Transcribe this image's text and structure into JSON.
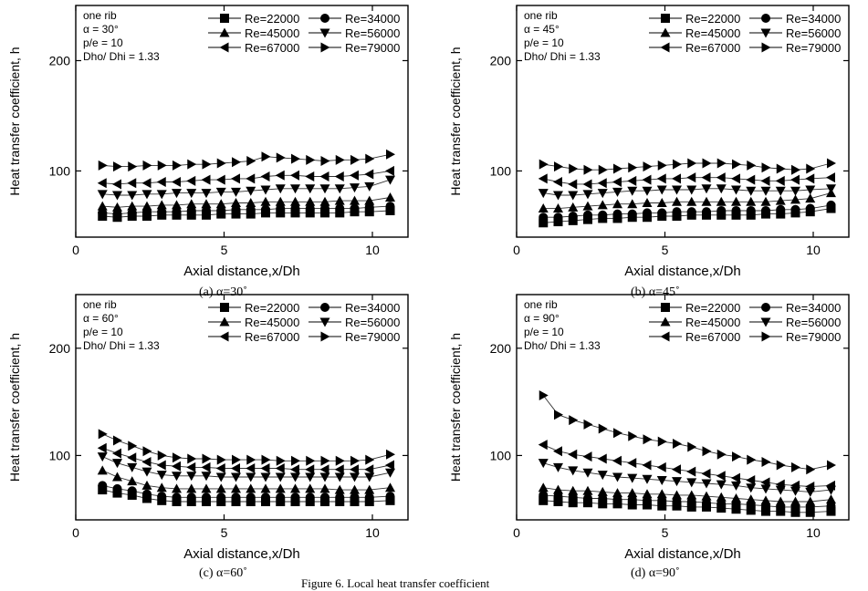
{
  "figure_caption": "Figure 6. Local heat transfer coefficient",
  "chart_data": [
    {
      "type": "scatter",
      "caption": "(a) α=30˚",
      "xlabel": "Axial distance,x/Dh",
      "ylabel": "Heat transfer coefficient, h",
      "xlim": [
        0,
        11.2
      ],
      "ylim": [
        40,
        250
      ],
      "xticks": [
        0,
        5,
        10
      ],
      "yticks": [
        100,
        200
      ],
      "annotation": [
        "one rib",
        "α = 30°",
        "p/e = 10",
        "Dho/ Dhi = 1.33"
      ],
      "x": [
        0.9,
        1.4,
        1.9,
        2.4,
        2.9,
        3.4,
        3.9,
        4.4,
        4.9,
        5.4,
        5.9,
        6.4,
        6.9,
        7.4,
        7.9,
        8.4,
        8.9,
        9.4,
        9.9,
        10.6
      ],
      "series": [
        {
          "name": "Re=22000",
          "marker": "square",
          "values": [
            59,
            58,
            59,
            59,
            60,
            60,
            60,
            60,
            61,
            61,
            61,
            62,
            62,
            62,
            62,
            62,
            62,
            63,
            63,
            64
          ]
        },
        {
          "name": "Re=34000",
          "marker": "circle",
          "values": [
            62,
            61,
            62,
            63,
            63,
            63,
            64,
            64,
            64,
            65,
            65,
            65,
            66,
            66,
            66,
            66,
            66,
            66,
            67,
            68
          ]
        },
        {
          "name": "Re=45000",
          "marker": "triangle-up",
          "values": [
            68,
            67,
            68,
            68,
            69,
            69,
            70,
            70,
            70,
            71,
            71,
            72,
            72,
            72,
            72,
            72,
            73,
            73,
            73,
            76
          ]
        },
        {
          "name": "Re=56000",
          "marker": "triangle-down",
          "values": [
            79,
            78,
            78,
            79,
            79,
            80,
            80,
            80,
            81,
            81,
            82,
            83,
            84,
            84,
            84,
            84,
            84,
            85,
            86,
            92
          ]
        },
        {
          "name": "Re=67000",
          "marker": "triangle-left",
          "values": [
            89,
            88,
            89,
            89,
            90,
            90,
            91,
            92,
            92,
            93,
            93,
            95,
            96,
            96,
            95,
            95,
            95,
            96,
            97,
            100
          ]
        },
        {
          "name": "Re=79000",
          "marker": "triangle-right",
          "values": [
            105,
            104,
            104,
            105,
            105,
            105,
            106,
            106,
            107,
            108,
            109,
            113,
            112,
            111,
            110,
            109,
            110,
            110,
            111,
            115
          ]
        }
      ]
    },
    {
      "type": "scatter",
      "caption": "(b) α=45˚",
      "xlabel": "Axial distance,x/Dh",
      "ylabel": "Heat transfer coefficient, h",
      "xlim": [
        0,
        11.2
      ],
      "ylim": [
        40,
        250
      ],
      "xticks": [
        0,
        5,
        10
      ],
      "yticks": [
        100,
        200
      ],
      "annotation": [
        "one rib",
        "α = 45°",
        "p/e = 10",
        "Dho/ Dhi = 1.33"
      ],
      "x": [
        0.9,
        1.4,
        1.9,
        2.4,
        2.9,
        3.4,
        3.9,
        4.4,
        4.9,
        5.4,
        5.9,
        6.4,
        6.9,
        7.4,
        7.9,
        8.4,
        8.9,
        9.4,
        9.9,
        10.6
      ],
      "series": [
        {
          "name": "Re=22000",
          "marker": "square",
          "values": [
            53,
            54,
            55,
            56,
            57,
            57,
            58,
            58,
            59,
            59,
            60,
            60,
            60,
            60,
            60,
            61,
            61,
            62,
            63,
            66
          ]
        },
        {
          "name": "Re=34000",
          "marker": "circle",
          "values": [
            58,
            58,
            59,
            60,
            60,
            61,
            61,
            62,
            62,
            63,
            63,
            63,
            64,
            64,
            64,
            64,
            65,
            65,
            66,
            69
          ]
        },
        {
          "name": "Re=45000",
          "marker": "triangle-up",
          "values": [
            66,
            66,
            67,
            68,
            69,
            70,
            70,
            71,
            71,
            72,
            72,
            72,
            72,
            72,
            72,
            72,
            73,
            74,
            75,
            80
          ]
        },
        {
          "name": "Re=56000",
          "marker": "triangle-down",
          "values": [
            80,
            78,
            78,
            79,
            80,
            81,
            82,
            82,
            83,
            83,
            83,
            84,
            84,
            83,
            82,
            82,
            82,
            82,
            83,
            84
          ]
        },
        {
          "name": "Re=67000",
          "marker": "triangle-left",
          "values": [
            93,
            90,
            88,
            88,
            89,
            90,
            91,
            92,
            93,
            93,
            94,
            94,
            94,
            93,
            92,
            91,
            91,
            92,
            93,
            94
          ]
        },
        {
          "name": "Re=79000",
          "marker": "triangle-right",
          "values": [
            106,
            104,
            102,
            101,
            101,
            102,
            103,
            104,
            105,
            106,
            107,
            107,
            107,
            106,
            105,
            103,
            102,
            101,
            102,
            107
          ]
        }
      ]
    },
    {
      "type": "scatter",
      "caption": "(c) α=60˚",
      "xlabel": "Axial distance,x/Dh",
      "ylabel": "Heat transfer coefficient, h",
      "xlim": [
        0,
        11.2
      ],
      "ylim": [
        40,
        250
      ],
      "xticks": [
        0,
        5,
        10
      ],
      "yticks": [
        100,
        200
      ],
      "annotation": [
        "one rib",
        "α = 60°",
        "p/e = 10",
        "Dho/ Dhi = 1.33"
      ],
      "x": [
        0.9,
        1.4,
        1.9,
        2.4,
        2.9,
        3.4,
        3.9,
        4.4,
        4.9,
        5.4,
        5.9,
        6.4,
        6.9,
        7.4,
        7.9,
        8.4,
        8.9,
        9.4,
        9.9,
        10.6
      ],
      "series": [
        {
          "name": "Re=22000",
          "marker": "square",
          "values": [
            68,
            65,
            63,
            60,
            58,
            57,
            57,
            57,
            57,
            57,
            57,
            57,
            57,
            57,
            57,
            57,
            57,
            57,
            57,
            58
          ]
        },
        {
          "name": "Re=34000",
          "marker": "circle",
          "values": [
            72,
            69,
            67,
            64,
            62,
            61,
            61,
            61,
            61,
            61,
            61,
            61,
            61,
            61,
            61,
            61,
            61,
            61,
            61,
            62
          ]
        },
        {
          "name": "Re=45000",
          "marker": "triangle-up",
          "values": [
            86,
            80,
            76,
            72,
            70,
            69,
            69,
            69,
            69,
            69,
            69,
            69,
            69,
            69,
            69,
            69,
            68,
            68,
            68,
            70
          ]
        },
        {
          "name": "Re=56000",
          "marker": "triangle-down",
          "values": [
            99,
            93,
            89,
            85,
            82,
            81,
            81,
            81,
            80,
            80,
            80,
            80,
            80,
            80,
            80,
            80,
            80,
            80,
            80,
            84
          ]
        },
        {
          "name": "Re=67000",
          "marker": "triangle-left",
          "values": [
            107,
            102,
            98,
            94,
            91,
            90,
            89,
            89,
            88,
            88,
            88,
            88,
            88,
            87,
            87,
            87,
            87,
            87,
            87,
            91
          ]
        },
        {
          "name": "Re=79000",
          "marker": "triangle-right",
          "values": [
            120,
            114,
            109,
            104,
            100,
            98,
            97,
            97,
            96,
            96,
            96,
            96,
            95,
            95,
            95,
            95,
            95,
            95,
            96,
            101
          ]
        }
      ]
    },
    {
      "type": "scatter",
      "caption": "(d) α=90˚",
      "xlabel": "Axial distance,x/Dh",
      "ylabel": "Heat transfer coefficient, h",
      "xlim": [
        0,
        11.2
      ],
      "ylim": [
        40,
        250
      ],
      "xticks": [
        0,
        5,
        10
      ],
      "yticks": [
        100,
        200
      ],
      "annotation": [
        "one rib",
        "α = 90°",
        "p/e = 10",
        "Dho/ Dhi = 1.33"
      ],
      "x": [
        0.9,
        1.4,
        1.9,
        2.4,
        2.9,
        3.4,
        3.9,
        4.4,
        4.9,
        5.4,
        5.9,
        6.4,
        6.9,
        7.4,
        7.9,
        8.4,
        8.9,
        9.4,
        9.9,
        10.6
      ],
      "series": [
        {
          "name": "Re=22000",
          "marker": "square",
          "values": [
            58,
            57,
            56,
            56,
            55,
            55,
            54,
            54,
            53,
            53,
            52,
            52,
            51,
            50,
            49,
            48,
            48,
            47,
            47,
            48
          ]
        },
        {
          "name": "Re=34000",
          "marker": "circle",
          "values": [
            63,
            62,
            61,
            60,
            60,
            59,
            59,
            58,
            58,
            57,
            57,
            56,
            55,
            55,
            54,
            53,
            52,
            52,
            52,
            53
          ]
        },
        {
          "name": "Re=45000",
          "marker": "triangle-up",
          "values": [
            70,
            68,
            67,
            67,
            66,
            65,
            65,
            64,
            64,
            63,
            63,
            62,
            61,
            60,
            59,
            58,
            57,
            57,
            57,
            59
          ]
        },
        {
          "name": "Re=56000",
          "marker": "triangle-down",
          "values": [
            93,
            89,
            86,
            84,
            82,
            80,
            79,
            78,
            77,
            76,
            75,
            74,
            73,
            72,
            70,
            69,
            68,
            67,
            66,
            68
          ]
        },
        {
          "name": "Re=67000",
          "marker": "triangle-left",
          "values": [
            110,
            104,
            101,
            99,
            97,
            95,
            93,
            91,
            89,
            87,
            85,
            83,
            81,
            79,
            77,
            75,
            73,
            72,
            71,
            72
          ]
        },
        {
          "name": "Re=79000",
          "marker": "triangle-right",
          "values": [
            156,
            138,
            133,
            129,
            125,
            121,
            118,
            115,
            113,
            111,
            108,
            104,
            101,
            99,
            96,
            94,
            91,
            89,
            87,
            91
          ]
        }
      ]
    }
  ]
}
